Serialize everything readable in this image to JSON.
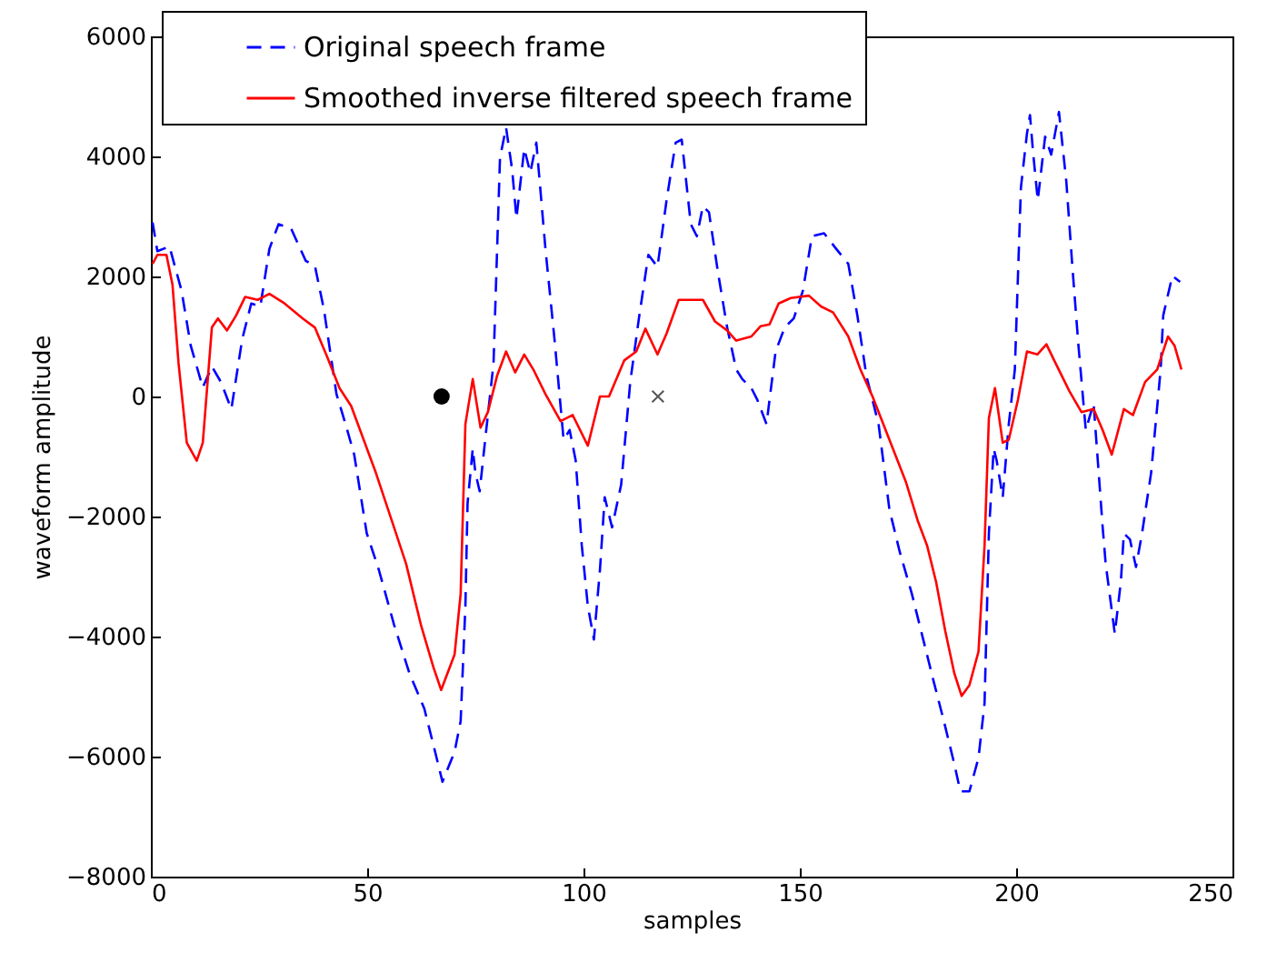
{
  "chart_data": {
    "type": "line",
    "xlabel": "samples",
    "ylabel": "waveform amplitude",
    "xlim": [
      0,
      250
    ],
    "xticks": [
      0,
      50,
      100,
      150,
      200,
      250
    ],
    "ylim": [
      -8000,
      6000
    ],
    "yticks": [
      -8000,
      -6000,
      -4000,
      -2000,
      0,
      2000,
      4000,
      6000
    ],
    "grid": false,
    "legend": "top left",
    "series": [
      {
        "name": "Original speech frame",
        "color": "#0000ff",
        "line_style": "dashed",
        "x": [
          0.4,
          1.5,
          4.3,
          7.1,
          9.2,
          12,
          14.1,
          16.2,
          18.6,
          21.1,
          23.2,
          25.3,
          27.4,
          29.5,
          32.4,
          35.8,
          37.9,
          40,
          42.9,
          45,
          47,
          49.9,
          52.7,
          56.2,
          59.7,
          63.2,
          65.7,
          67.4,
          70.2,
          71.6,
          72.7,
          73.2,
          74.4,
          75,
          76,
          77.2,
          79.2,
          80.7,
          82.1,
          83.5,
          84.5,
          86.3,
          87.7,
          89.1,
          91.2,
          93.3,
          95.4,
          96.8,
          98.2,
          99.6,
          101,
          102.4,
          103.8,
          104.9,
          106.6,
          108.7,
          110.8,
          112.9,
          115,
          117.1,
          119.2,
          121.3,
          122.7,
          124.8,
          126.2,
          127.6,
          129,
          131.1,
          133.2,
          135.3,
          136.7,
          138.8,
          140.2,
          142.3,
          144.4,
          146.5,
          148.6,
          150.7,
          152.8,
          155.6,
          158.4,
          161.2,
          163.3,
          165.4,
          168.2,
          170.7,
          173.1,
          175.9,
          178.7,
          180.8,
          183.3,
          185.7,
          187.1,
          189.2,
          191.3,
          192.7,
          193.7,
          194.8,
          195.5,
          196.9,
          198.3,
          199.7,
          201.1,
          202.5,
          203.2,
          203.9,
          205,
          206.7,
          208.1,
          209.9,
          211.6,
          213,
          214.4,
          216.1,
          217.9,
          220,
          220.7,
          222.8,
          224.2,
          224.9,
          226.3,
          227.7,
          229.1,
          231.2,
          233.4,
          234,
          236.1,
          237.9
        ],
        "values": [
          2900,
          2420,
          2500,
          1760,
          850,
          150,
          500,
          240,
          -210,
          950,
          1550,
          1500,
          2460,
          2870,
          2800,
          2260,
          2180,
          1450,
          40,
          -460,
          -970,
          -2280,
          -2890,
          -3800,
          -4600,
          -5200,
          -5920,
          -6420,
          -5920,
          -5410,
          -3490,
          -1780,
          -870,
          -1270,
          -1580,
          -770,
          550,
          3980,
          4480,
          3780,
          2970,
          4130,
          3730,
          4230,
          2460,
          950,
          -720,
          -560,
          -1070,
          -2480,
          -3490,
          -4050,
          -2890,
          -1680,
          -2180,
          -1470,
          240,
          1350,
          2360,
          2160,
          3270,
          4230,
          4280,
          2870,
          2670,
          3170,
          3070,
          2060,
          1150,
          450,
          290,
          140,
          -60,
          -460,
          750,
          1150,
          1300,
          1760,
          2670,
          2720,
          2460,
          2210,
          1350,
          340,
          -460,
          -1880,
          -2590,
          -3290,
          -4100,
          -4710,
          -5410,
          -6120,
          -6580,
          -6580,
          -6020,
          -5110,
          -2280,
          -870,
          -1070,
          -1680,
          -460,
          450,
          3480,
          4380,
          4690,
          4080,
          3270,
          4330,
          4030,
          4740,
          3580,
          2160,
          850,
          -560,
          -110,
          -2180,
          -2790,
          -3950,
          -3090,
          -2280,
          -2380,
          -2840,
          -2280,
          -1270,
          450,
          1350,
          2010,
          1910
        ]
      },
      {
        "name": "Smoothed inverse filtered speech frame",
        "color": "#ff0000",
        "line_style": "solid",
        "x": [
          0.4,
          1.5,
          3.6,
          5,
          6.4,
          8.3,
          10.6,
          12,
          14.1,
          15.5,
          17.6,
          19.7,
          21.8,
          24.7,
          27.4,
          30.9,
          35.1,
          37.9,
          40.8,
          43.6,
          46.3,
          52,
          56.2,
          59,
          62.4,
          65.3,
          67.1,
          70.2,
          71.6,
          72.7,
          74.4,
          76.2,
          77.9,
          80,
          82.1,
          84.2,
          86.3,
          88.4,
          91.2,
          94.7,
          97.5,
          101,
          103.8,
          105.9,
          109.4,
          112.2,
          114.3,
          117.1,
          119.2,
          122,
          127.6,
          130.4,
          133.2,
          135.3,
          138.8,
          140.9,
          143,
          145.1,
          147.9,
          152.1,
          154.9,
          157.7,
          161.2,
          164,
          166.8,
          170.7,
          174.5,
          177.3,
          179.4,
          181.5,
          183.6,
          185.7,
          187.4,
          189.2,
          191.3,
          192.7,
          193.7,
          195.1,
          196.9,
          198.3,
          200.4,
          202.5,
          204.9,
          207,
          208.8,
          212.3,
          215.1,
          217.9,
          220,
          222.1,
          224.9,
          227,
          229.8,
          232.6,
          235.1,
          236.6,
          238.2
        ],
        "values": [
          2210,
          2360,
          2360,
          1860,
          550,
          -770,
          -1070,
          -770,
          1150,
          1300,
          1100,
          1350,
          1660,
          1610,
          1710,
          1550,
          1300,
          1150,
          650,
          140,
          -160,
          -1270,
          -2180,
          -2790,
          -3800,
          -4510,
          -4890,
          -4300,
          -3290,
          -460,
          290,
          -520,
          -260,
          340,
          750,
          400,
          700,
          450,
          40,
          -410,
          -310,
          -820,
          0,
          0,
          600,
          750,
          1130,
          700,
          1050,
          1610,
          1610,
          1250,
          1100,
          930,
          1000,
          1170,
          1200,
          1550,
          1640,
          1680,
          1500,
          1400,
          1000,
          450,
          0,
          -720,
          -1420,
          -2080,
          -2480,
          -3090,
          -3900,
          -4610,
          -4990,
          -4810,
          -4250,
          -2480,
          -360,
          140,
          -770,
          -720,
          -60,
          750,
          700,
          870,
          600,
          90,
          -260,
          -210,
          -560,
          -970,
          -210,
          -310,
          240,
          450,
          1000,
          850,
          450
        ]
      },
      {
        "type": "scatter",
        "marker": "circle",
        "color": "#000000",
        "x": [
          67.2
        ],
        "values": [
          0
        ]
      },
      {
        "type": "scatter",
        "marker": "cross",
        "color": "#555555",
        "x": [
          117.2
        ],
        "values": [
          0
        ]
      }
    ]
  }
}
